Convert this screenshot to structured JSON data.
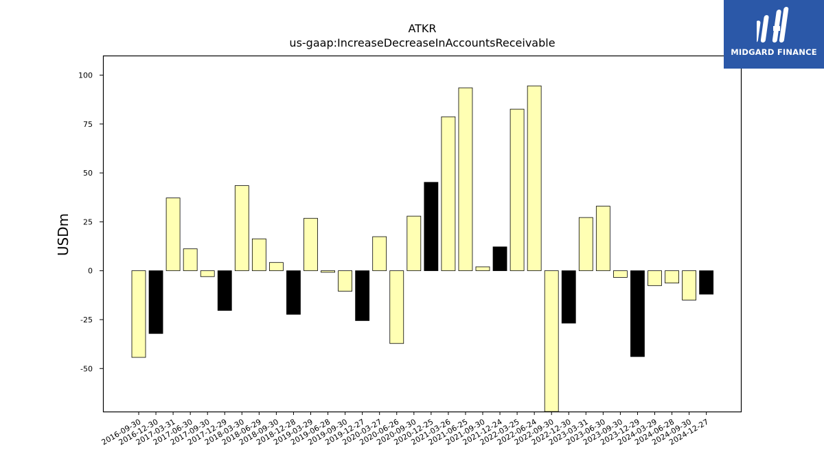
{
  "brand": {
    "name": "MIDGARD FINANCE",
    "color": "#2b58a8",
    "logo_icon": "mf-monogram-icon"
  },
  "chart_data": {
    "type": "bar",
    "title": "ATKR",
    "subtitle": "us-gaap:IncreaseDecreaseInAccountsReceivable",
    "xlabel": "",
    "ylabel": "USDm",
    "ylim": [
      -72,
      110
    ],
    "yticks": [
      -50,
      -25,
      0,
      25,
      50,
      75,
      100
    ],
    "grid": false,
    "legend": "none",
    "colors": {
      "default": "#ffffb3",
      "highlight": "#000000",
      "edge": "#000000"
    },
    "categories": [
      "2016-09-30",
      "2016-12-30",
      "2017-03-31",
      "2017-06-30",
      "2017-09-30",
      "2017-12-29",
      "2018-03-30",
      "2018-06-29",
      "2018-09-30",
      "2018-12-28",
      "2019-03-29",
      "2019-06-28",
      "2019-09-30",
      "2019-12-27",
      "2020-03-27",
      "2020-06-26",
      "2020-09-30",
      "2020-12-25",
      "2021-03-26",
      "2021-06-25",
      "2021-09-30",
      "2021-12-24",
      "2022-03-25",
      "2022-06-24",
      "2022-09-30",
      "2022-12-30",
      "2023-03-31",
      "2023-06-30",
      "2023-09-30",
      "2023-12-29",
      "2024-03-29",
      "2024-06-28",
      "2024-09-30",
      "2024-12-27"
    ],
    "values": [
      -44.3,
      -32.1,
      37.2,
      11.2,
      -3.0,
      -20.3,
      43.5,
      16.3,
      4.2,
      -22.3,
      26.8,
      -0.8,
      -10.5,
      -25.5,
      17.4,
      -37.2,
      27.9,
      45.2,
      78.7,
      93.5,
      2.0,
      12.2,
      82.6,
      94.5,
      -72,
      -26.8,
      27.2,
      33.0,
      -3.4,
      -43.9,
      -7.6,
      -6.3,
      -15.0,
      -12.0
    ],
    "highlighted": [
      false,
      true,
      false,
      false,
      false,
      true,
      false,
      false,
      false,
      true,
      false,
      false,
      false,
      true,
      false,
      false,
      false,
      true,
      false,
      false,
      false,
      true,
      false,
      false,
      false,
      true,
      false,
      false,
      false,
      true,
      false,
      false,
      false,
      true
    ]
  }
}
